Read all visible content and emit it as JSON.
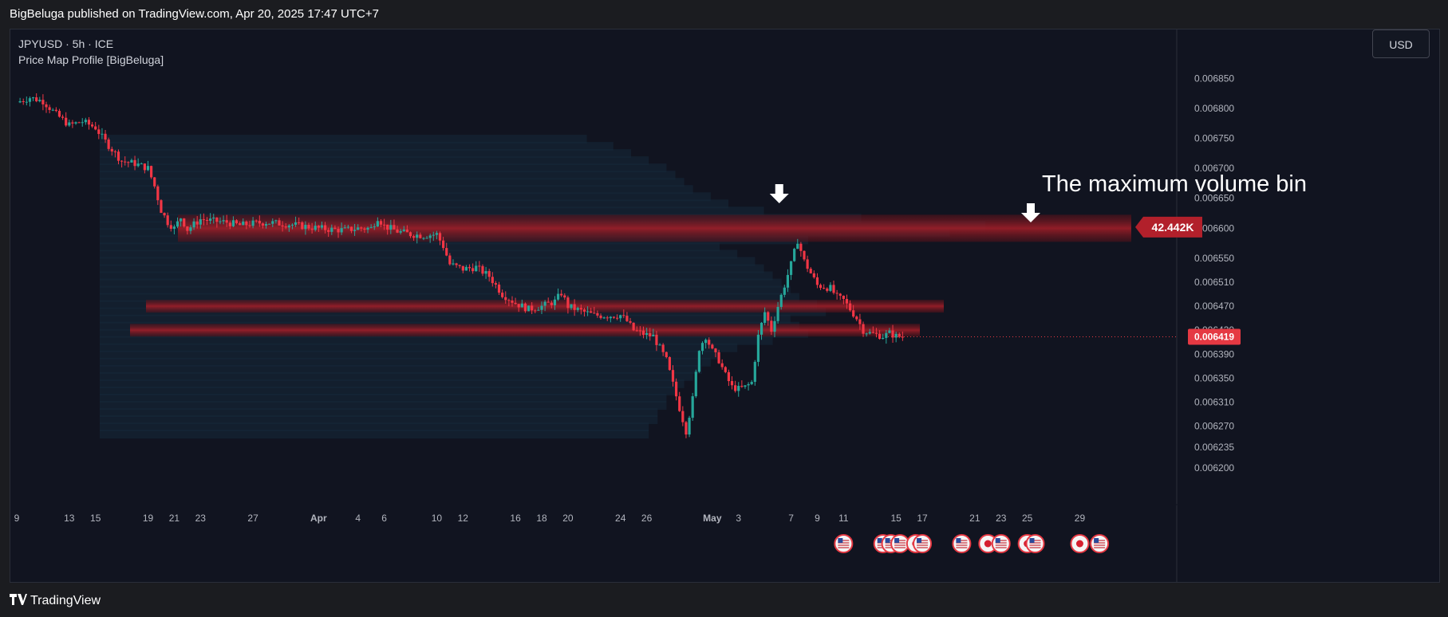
{
  "header": {
    "published_text": "BigBeluga published on TradingView.com, Apr 20, 2025 17:47 UTC+7"
  },
  "legend": {
    "symbol_line": "JPYUSD · 5h · ICE",
    "indicator_line": "Price Map Profile [BigBeluga]"
  },
  "currency_button": "USD",
  "annotation": {
    "text": "The maximum volume bin"
  },
  "footer": {
    "logo_mark": "𝟏𝟕",
    "brand": "TradingView"
  },
  "colors": {
    "up": "#26a69a",
    "down": "#f23645",
    "bin": "#8b1a22",
    "accent": "#e53943"
  },
  "chart_data": {
    "type": "candlestick",
    "title": "JPYUSD · 5h · ICE",
    "ylim": [
      0.006175,
      0.006885
    ],
    "y_tick_labels": [
      "0.006850",
      "0.006800",
      "0.006750",
      "0.006700",
      "0.006650",
      "0.006600",
      "0.006550",
      "0.006510",
      "0.006470",
      "0.006430",
      "0.006390",
      "0.006350",
      "0.006310",
      "0.006270",
      "0.006235",
      "0.006200"
    ],
    "y_tick_values": [
      0.00685,
      0.0068,
      0.00675,
      0.0067,
      0.00665,
      0.0066,
      0.00655,
      0.00651,
      0.00647,
      0.00643,
      0.00639,
      0.00635,
      0.00631,
      0.00627,
      0.006235,
      0.0062
    ],
    "x_ticks": [
      {
        "label": "9",
        "day": 0
      },
      {
        "label": "13",
        "day": 4
      },
      {
        "label": "15",
        "day": 6
      },
      {
        "label": "19",
        "day": 10
      },
      {
        "label": "21",
        "day": 12
      },
      {
        "label": "23",
        "day": 14
      },
      {
        "label": "27",
        "day": 18
      },
      {
        "label": "Apr",
        "day": 23,
        "bold": true
      },
      {
        "label": "4",
        "day": 26
      },
      {
        "label": "6",
        "day": 28
      },
      {
        "label": "10",
        "day": 32
      },
      {
        "label": "12",
        "day": 34
      },
      {
        "label": "16",
        "day": 38
      },
      {
        "label": "18",
        "day": 40
      },
      {
        "label": "20",
        "day": 42
      },
      {
        "label": "24",
        "day": 46
      },
      {
        "label": "26",
        "day": 48
      },
      {
        "label": "May",
        "day": 53,
        "bold": true
      },
      {
        "label": "3",
        "day": 55
      },
      {
        "label": "7",
        "day": 59
      },
      {
        "label": "9",
        "day": 61
      },
      {
        "label": "11",
        "day": 63
      },
      {
        "label": "15",
        "day": 67
      },
      {
        "label": "17",
        "day": 69
      },
      {
        "label": "21",
        "day": 73
      },
      {
        "label": "23",
        "day": 75
      },
      {
        "label": "25",
        "day": 77
      },
      {
        "label": "29",
        "day": 81
      }
    ],
    "last_price": 0.006419,
    "last_price_label": "0.006419",
    "max_bin": {
      "label": "42.442K",
      "price": 0.006602
    },
    "price_path": [
      [
        0,
        0.00681
      ],
      [
        1,
        0.006818
      ],
      [
        2,
        0.006812
      ],
      [
        3,
        0.00679
      ],
      [
        4,
        0.006772
      ],
      [
        5,
        0.006778
      ],
      [
        6,
        0.006768
      ],
      [
        6.5,
        0.006752
      ],
      [
        7,
        0.006738
      ],
      [
        8,
        0.006712
      ],
      [
        9,
        0.006708
      ],
      [
        10,
        0.0067
      ],
      [
        10.5,
        0.00667
      ],
      [
        11,
        0.00663
      ],
      [
        11.5,
        0.00661
      ],
      [
        12,
        0.0066
      ],
      [
        12.5,
        0.006618
      ],
      [
        13,
        0.006598
      ],
      [
        14,
        0.006615
      ],
      [
        15,
        0.006612
      ],
      [
        16,
        0.00661
      ],
      [
        17,
        0.006605
      ],
      [
        18,
        0.006608
      ],
      [
        19,
        0.00661
      ],
      [
        20,
        0.006608
      ],
      [
        21,
        0.006606
      ],
      [
        22,
        0.006603
      ],
      [
        23,
        0.0066
      ],
      [
        24,
        0.006598
      ],
      [
        25,
        0.006597
      ],
      [
        26,
        0.0066
      ],
      [
        27,
        0.0066
      ],
      [
        27.5,
        0.006618
      ],
      [
        28,
        0.006604
      ],
      [
        29,
        0.006595
      ],
      [
        30,
        0.00659
      ],
      [
        31,
        0.006588
      ],
      [
        32,
        0.00659
      ],
      [
        32.5,
        0.00657
      ],
      [
        33,
        0.00654
      ],
      [
        34,
        0.006532
      ],
      [
        35,
        0.006535
      ],
      [
        36,
        0.00652
      ],
      [
        37,
        0.00649
      ],
      [
        38,
        0.006475
      ],
      [
        39,
        0.006465
      ],
      [
        40,
        0.00647
      ],
      [
        41,
        0.006478
      ],
      [
        41.5,
        0.006492
      ],
      [
        42,
        0.00647
      ],
      [
        43,
        0.006462
      ],
      [
        44,
        0.006455
      ],
      [
        45,
        0.006454
      ],
      [
        46,
        0.006455
      ],
      [
        46.5,
        0.006445
      ],
      [
        47,
        0.00643
      ],
      [
        48,
        0.006422
      ],
      [
        48.5,
        0.00642
      ],
      [
        49,
        0.0064
      ],
      [
        49.5,
        0.00638
      ],
      [
        50,
        0.00634
      ],
      [
        50.5,
        0.0063
      ],
      [
        51,
        0.006262
      ],
      [
        51.5,
        0.006315
      ],
      [
        52,
        0.0064
      ],
      [
        52.5,
        0.00642
      ],
      [
        53,
        0.006395
      ],
      [
        53.5,
        0.00638
      ],
      [
        54,
        0.006355
      ],
      [
        54.5,
        0.006335
      ],
      [
        55,
        0.006332
      ],
      [
        55.5,
        0.006335
      ],
      [
        56,
        0.006343
      ],
      [
        56.5,
        0.00642
      ],
      [
        57,
        0.00646
      ],
      [
        57.5,
        0.00643
      ],
      [
        58,
        0.00647
      ],
      [
        58.5,
        0.006505
      ],
      [
        59,
        0.00654
      ],
      [
        59.5,
        0.00658
      ],
      [
        60,
        0.006545
      ],
      [
        60.5,
        0.006525
      ],
      [
        61,
        0.006505
      ],
      [
        62,
        0.0065
      ],
      [
        62.5,
        0.006485
      ],
      [
        63,
        0.00648
      ],
      [
        63.5,
        0.006465
      ],
      [
        64,
        0.00645
      ],
      [
        64.5,
        0.00643
      ],
      [
        65,
        0.006425
      ],
      [
        66,
        0.00642
      ],
      [
        66.5,
        0.006425
      ],
      [
        67,
        0.00642
      ],
      [
        67.5,
        0.006419
      ]
    ],
    "profile_bins": [
      {
        "price": 0.006748,
        "volume": 0.55
      },
      {
        "price": 0.006736,
        "volume": 0.58
      },
      {
        "price": 0.006724,
        "volume": 0.6
      },
      {
        "price": 0.006712,
        "volume": 0.62
      },
      {
        "price": 0.0067,
        "volume": 0.64
      },
      {
        "price": 0.006688,
        "volume": 0.65
      },
      {
        "price": 0.006676,
        "volume": 0.66
      },
      {
        "price": 0.006664,
        "volume": 0.67
      },
      {
        "price": 0.006652,
        "volume": 0.69
      },
      {
        "price": 0.00664,
        "volume": 0.71
      },
      {
        "price": 0.006628,
        "volume": 0.75
      },
      {
        "price": 0.006616,
        "volume": 0.86
      },
      {
        "price": 0.006604,
        "volume": 1.0
      },
      {
        "price": 0.006592,
        "volume": 0.96
      },
      {
        "price": 0.00658,
        "volume": 0.8
      },
      {
        "price": 0.006568,
        "volume": 0.7
      },
      {
        "price": 0.006556,
        "volume": 0.72
      },
      {
        "price": 0.006544,
        "volume": 0.74
      },
      {
        "price": 0.006532,
        "volume": 0.75
      },
      {
        "price": 0.00652,
        "volume": 0.76
      },
      {
        "price": 0.006508,
        "volume": 0.77
      },
      {
        "price": 0.006496,
        "volume": 0.78
      },
      {
        "price": 0.006484,
        "volume": 0.79
      },
      {
        "price": 0.006472,
        "volume": 0.81
      },
      {
        "price": 0.00646,
        "volume": 0.82
      },
      {
        "price": 0.006448,
        "volume": 0.78
      },
      {
        "price": 0.006436,
        "volume": 0.79
      },
      {
        "price": 0.006424,
        "volume": 0.8
      },
      {
        "price": 0.006412,
        "volume": 0.76
      },
      {
        "price": 0.0064,
        "volume": 0.72
      },
      {
        "price": 0.006388,
        "volume": 0.7
      },
      {
        "price": 0.006376,
        "volume": 0.69
      },
      {
        "price": 0.006364,
        "volume": 0.68
      },
      {
        "price": 0.006352,
        "volume": 0.67
      },
      {
        "price": 0.00634,
        "volume": 0.66
      },
      {
        "price": 0.006328,
        "volume": 0.65
      },
      {
        "price": 0.006316,
        "volume": 0.64
      },
      {
        "price": 0.006304,
        "volume": 0.64
      },
      {
        "price": 0.006292,
        "volume": 0.63
      },
      {
        "price": 0.00628,
        "volume": 0.63
      },
      {
        "price": 0.006268,
        "volume": 0.62
      },
      {
        "price": 0.006256,
        "volume": 0.62
      }
    ],
    "highlight_bins": [
      {
        "price": 0.0066,
        "volume": 1.0
      },
      {
        "price": 0.00647,
        "volume": 0.82
      },
      {
        "price": 0.00643,
        "volume": 0.8
      }
    ],
    "event_markers": [
      {
        "day": 63,
        "flag": "us"
      },
      {
        "day": 66,
        "flag": "us"
      },
      {
        "day": 66.6,
        "flag": "us"
      },
      {
        "day": 67.3,
        "flag": "us"
      },
      {
        "day": 68.5,
        "flag": "jp"
      },
      {
        "day": 69,
        "flag": "us"
      },
      {
        "day": 72,
        "flag": "us"
      },
      {
        "day": 74,
        "flag": "jp"
      },
      {
        "day": 75,
        "flag": "us"
      },
      {
        "day": 77,
        "flag": "jp"
      },
      {
        "day": 77.6,
        "flag": "us"
      },
      {
        "day": 81,
        "flag": "jp"
      },
      {
        "day": 82.5,
        "flag": "us"
      }
    ]
  }
}
